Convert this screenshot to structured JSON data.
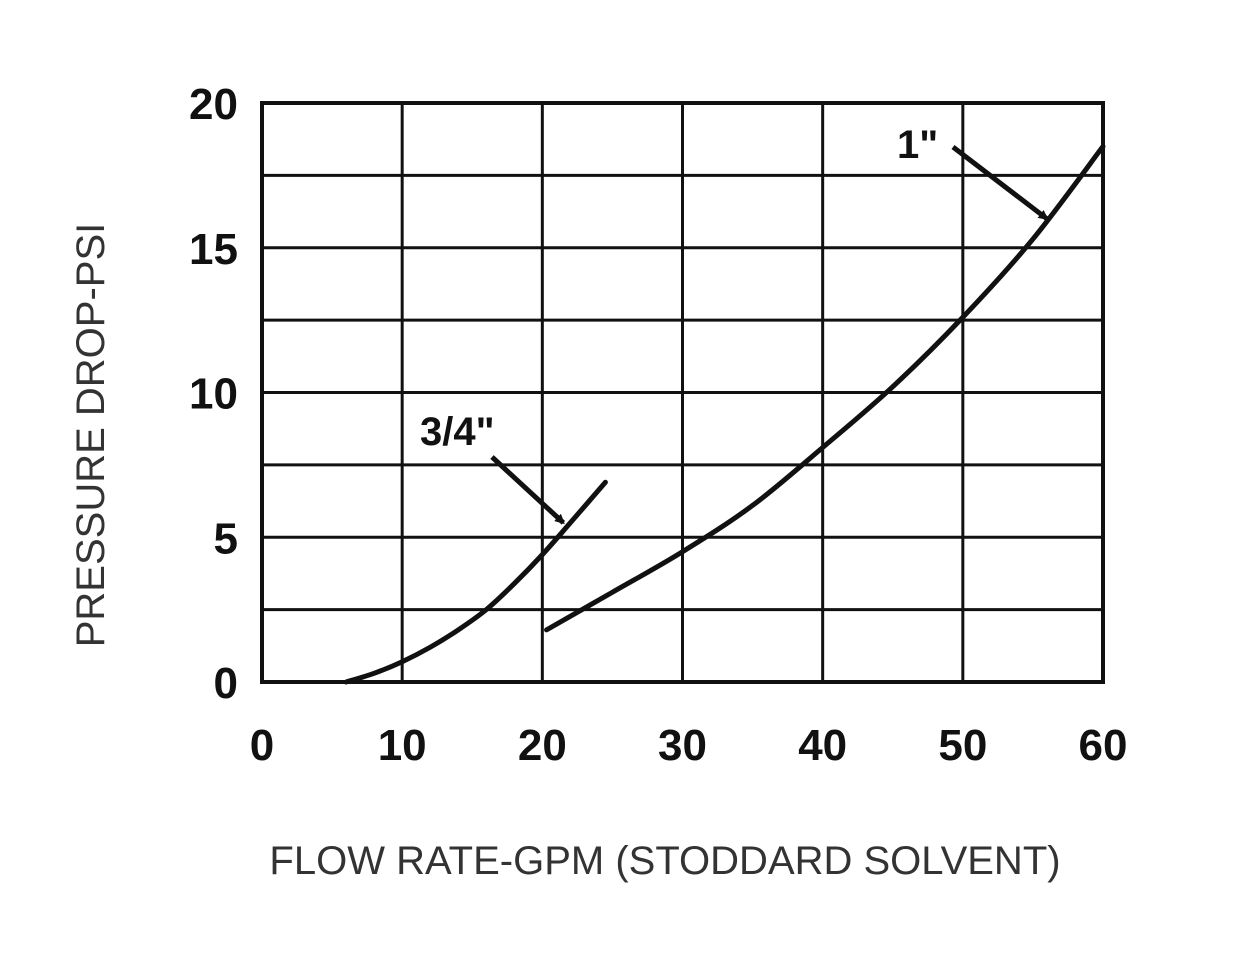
{
  "chart_data": {
    "type": "line",
    "xlabel": "FLOW RATE-GPM (STODDARD SOLVENT)",
    "ylabel": "PRESSURE DROP-PSI",
    "xlim": [
      0,
      60
    ],
    "ylim": [
      0,
      20
    ],
    "x_ticks": [
      {
        "value": 0,
        "label": "0"
      },
      {
        "value": 10,
        "label": "10"
      },
      {
        "value": 20,
        "label": "20"
      },
      {
        "value": 30,
        "label": "30"
      },
      {
        "value": 40,
        "label": "40"
      },
      {
        "value": 50,
        "label": "50"
      },
      {
        "value": 60,
        "label": "60"
      }
    ],
    "y_ticks": [
      {
        "value": 0,
        "label": "0"
      },
      {
        "value": 5,
        "label": "5"
      },
      {
        "value": 10,
        "label": "10"
      },
      {
        "value": 15,
        "label": "15"
      },
      {
        "value": 20,
        "label": "20"
      }
    ],
    "y_grid": [
      2.5,
      5,
      7.5,
      10,
      12.5,
      15,
      17.5
    ],
    "x_grid": [
      10,
      20,
      30,
      40,
      50
    ],
    "grid": true,
    "legend": "none",
    "series": [
      {
        "name": "3/4\"",
        "x": [
          6,
          8,
          10,
          12,
          14,
          16,
          18,
          20,
          22,
          24.5
        ],
        "y": [
          0,
          0.3,
          0.7,
          1.2,
          1.8,
          2.5,
          3.4,
          4.4,
          5.5,
          6.9
        ]
      },
      {
        "name": "1\"",
        "x": [
          20.3,
          25,
          30,
          35,
          40,
          45,
          50,
          55,
          60
        ],
        "y": [
          1.8,
          3.1,
          4.5,
          6.1,
          8.1,
          10.2,
          12.6,
          15.3,
          18.5
        ]
      }
    ],
    "annotations": [
      {
        "text": "3/4\"",
        "points_to": {
          "x": 21.5,
          "y": 5.5
        }
      },
      {
        "text": "1\"",
        "points_to": {
          "x": 56,
          "y": 16
        }
      }
    ]
  }
}
